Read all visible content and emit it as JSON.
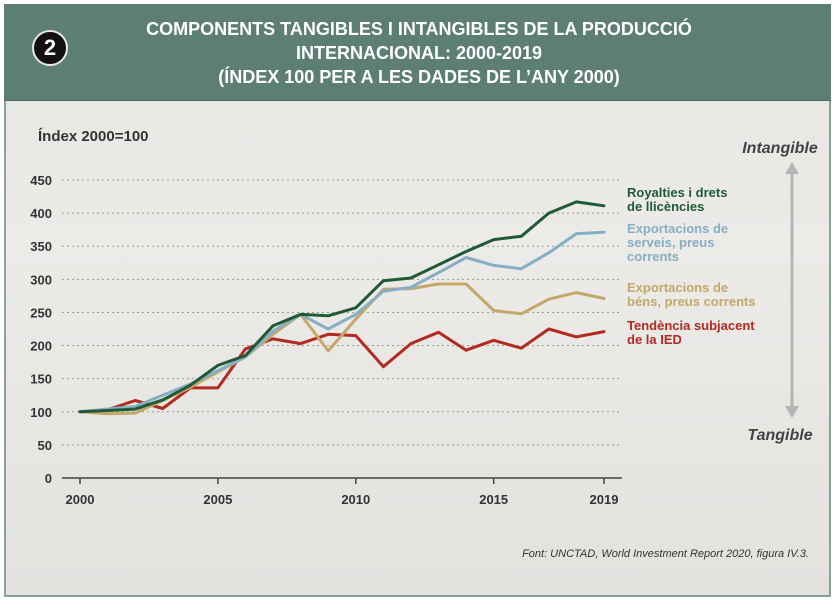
{
  "title": {
    "badge": "2",
    "line1": "COMPONENTS TANGIBLES I INTANGIBLES DE LA PRODUCCIÓ",
    "line2": "INTERNACIONAL: 2000-2019",
    "line3": "(ÍNDEX 100 PER A LES DADES DE L’ANY 2000)"
  },
  "source": "Font: UNCTAD, World Investment Report 2020, figura IV.3.",
  "colors": {
    "header": "#5d7f73",
    "royalties": "#1d5a35",
    "services": "#86aec4",
    "goods": "#c4a86a",
    "fdi": "#b22a20",
    "arrow": "#b5b5b5"
  },
  "chart_data": {
    "type": "line",
    "ylabel": "Índex 2000=100",
    "xlabel": "",
    "ylim": [
      0,
      450
    ],
    "xlim": [
      2000,
      2019
    ],
    "yticks": [
      0,
      50,
      100,
      150,
      200,
      250,
      300,
      350,
      400,
      450
    ],
    "xticks": [
      2000,
      2005,
      2010,
      2015,
      2019
    ],
    "grid": "horizontal-dashed",
    "legend": "right",
    "x": [
      2000,
      2001,
      2002,
      2003,
      2004,
      2005,
      2006,
      2007,
      2008,
      2009,
      2010,
      2011,
      2012,
      2013,
      2014,
      2015,
      2016,
      2017,
      2018,
      2019
    ],
    "series": [
      {
        "name": "Royalties i drets de llicències",
        "label_lines": [
          "Royalties i drets",
          "de llicències"
        ],
        "color_key": "royalties",
        "values": [
          100,
          102,
          104,
          118,
          140,
          170,
          185,
          230,
          247,
          245,
          257,
          298,
          302,
          322,
          342,
          360,
          365,
          400,
          417,
          411
        ]
      },
      {
        "name": "Exportacions de serveis, preus corrents",
        "label_lines": [
          "Exportacions de",
          "serveis, preus",
          "corrents"
        ],
        "color_key": "services",
        "values": [
          100,
          104,
          108,
          125,
          142,
          162,
          183,
          222,
          247,
          225,
          247,
          282,
          288,
          310,
          333,
          321,
          316,
          340,
          369,
          371
        ]
      },
      {
        "name": "Exportacions de béns, preus corrents",
        "label_lines": [
          "Exportacions de",
          "béns, preus corrents"
        ],
        "color_key": "goods",
        "values": [
          100,
          97,
          98,
          117,
          137,
          160,
          183,
          217,
          247,
          192,
          240,
          285,
          286,
          293,
          293,
          253,
          248,
          270,
          280,
          271
        ]
      },
      {
        "name": "Tendència subjacent de la IED",
        "label_lines": [
          "Tendència subjacent",
          "de la IED"
        ],
        "color_key": "fdi",
        "values": [
          100,
          103,
          117,
          105,
          136,
          136,
          195,
          210,
          203,
          217,
          215,
          168,
          203,
          220,
          193,
          208,
          196,
          225,
          213,
          221
        ]
      }
    ],
    "axis_arrow": {
      "top_label": "Intangible",
      "bottom_label": "Tangible"
    }
  }
}
